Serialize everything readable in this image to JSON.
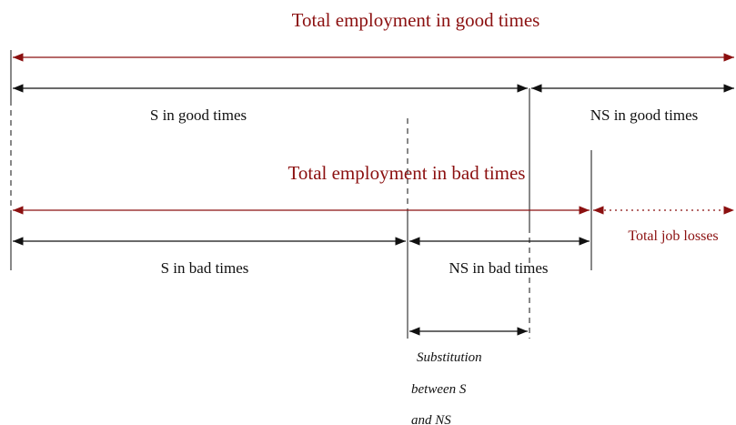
{
  "header": {
    "good_title": "Total employment in good times",
    "bad_title": "Total employment in bad times"
  },
  "segments": {
    "s_good": "S in good times",
    "ns_good": "NS in good times",
    "s_bad": "S in bad times",
    "ns_bad": "NS in bad times",
    "job_losses": "Total job losses"
  },
  "substitution": {
    "lines": [
      "Substitution",
      "between S",
      "and NS"
    ]
  }
}
